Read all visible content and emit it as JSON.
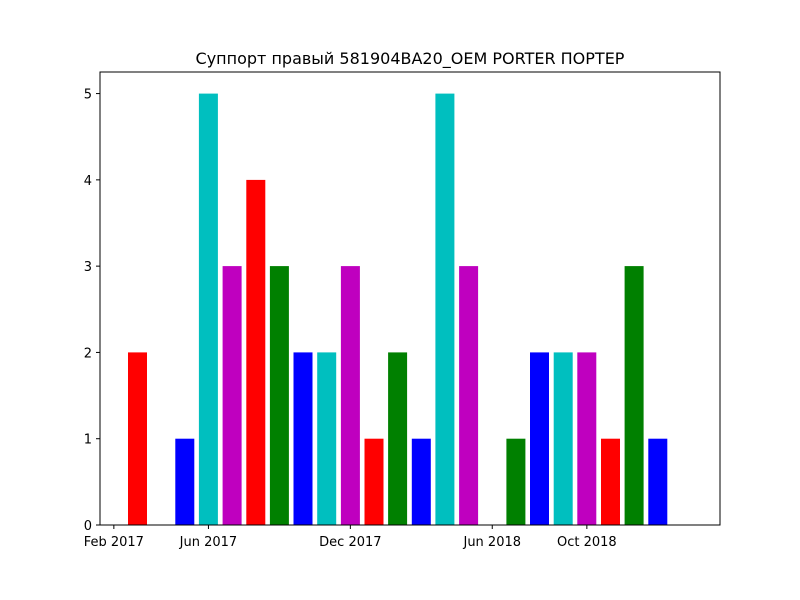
{
  "chart_data": {
    "type": "bar",
    "title": "Суппорт правый 581904BA20_OEM PORTER ПОРТЕР",
    "xlabel": "",
    "ylabel": "",
    "ylim": [
      0,
      5.25
    ],
    "grid": false,
    "legend": "none",
    "x_ticks": [
      "Feb 2017",
      "Jun 2017",
      "Dec 2017",
      "Jun 2018",
      "Oct 2018"
    ],
    "y_ticks": [
      "0",
      "1",
      "2",
      "3",
      "4",
      "5"
    ],
    "bars": [
      {
        "month": "2017-03",
        "value": 2,
        "color": "#ff0000"
      },
      {
        "month": "2017-04",
        "value": 0,
        "color": "#008000"
      },
      {
        "month": "2017-05",
        "value": 1,
        "color": "#0000ff"
      },
      {
        "month": "2017-06",
        "value": 5,
        "color": "#00bfbf"
      },
      {
        "month": "2017-07",
        "value": 3,
        "color": "#bf00bf"
      },
      {
        "month": "2017-08",
        "value": 4,
        "color": "#ff0000"
      },
      {
        "month": "2017-09",
        "value": 3,
        "color": "#008000"
      },
      {
        "month": "2017-10",
        "value": 2,
        "color": "#0000ff"
      },
      {
        "month": "2017-11",
        "value": 2,
        "color": "#00bfbf"
      },
      {
        "month": "2017-12",
        "value": 3,
        "color": "#bf00bf"
      },
      {
        "month": "2018-01",
        "value": 1,
        "color": "#ff0000"
      },
      {
        "month": "2018-02",
        "value": 2,
        "color": "#008000"
      },
      {
        "month": "2018-03",
        "value": 1,
        "color": "#0000ff"
      },
      {
        "month": "2018-04",
        "value": 5,
        "color": "#00bfbf"
      },
      {
        "month": "2018-05",
        "value": 3,
        "color": "#bf00bf"
      },
      {
        "month": "2018-06",
        "value": 0,
        "color": "#ff0000"
      },
      {
        "month": "2018-07",
        "value": 1,
        "color": "#008000"
      },
      {
        "month": "2018-08",
        "value": 2,
        "color": "#0000ff"
      },
      {
        "month": "2018-09",
        "value": 2,
        "color": "#00bfbf"
      },
      {
        "month": "2018-10",
        "value": 2,
        "color": "#bf00bf"
      },
      {
        "month": "2018-11",
        "value": 1,
        "color": "#ff0000"
      },
      {
        "month": "2018-12",
        "value": 3,
        "color": "#008000"
      },
      {
        "month": "2019-01",
        "value": 1,
        "color": "#0000ff"
      }
    ]
  }
}
